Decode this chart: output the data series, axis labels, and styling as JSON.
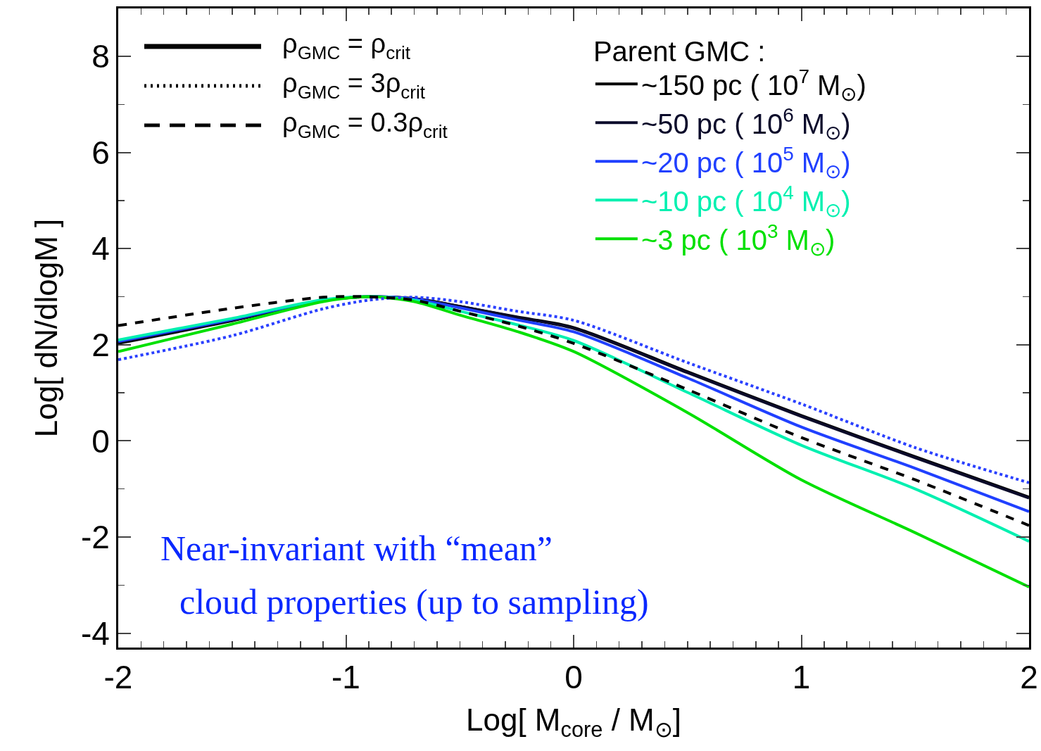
{
  "chart_data": {
    "type": "line",
    "xlabel": "Log[ M$_{core}$ / M$_{⊙}$]",
    "ylabel": "Log[ dN/dlogM ]",
    "legend_title": "Parent GMC :",
    "legend": "top right",
    "grid": false,
    "marker": "none",
    "x": [
      -2,
      -1.5,
      -1.1,
      -0.9,
      -0.7,
      -0.5,
      -0.25,
      0,
      0.5,
      1,
      1.5,
      2
    ],
    "xlim": [
      -2,
      2
    ],
    "xticks": [
      -2,
      -1,
      0,
      1,
      2
    ],
    "ylim": [
      -4.3,
      9
    ],
    "yticks": [
      -4,
      -2,
      0,
      2,
      4,
      6,
      8
    ],
    "series": [
      {
        "name": "~150 pc ( 10$^{7}$ M$_{⊙}$)",
        "color": "#000000",
        "line_style": "solid",
        "values": [
          2.03,
          2.5,
          2.92,
          3.0,
          2.96,
          2.8,
          2.58,
          2.36,
          1.44,
          0.53,
          -0.33,
          -1.17
        ]
      },
      {
        "name": "~50 pc ( 10$^{6}$ M$_{⊙}$)",
        "color": "#0a0a2a",
        "line_style": "solid",
        "values": [
          2.05,
          2.51,
          2.92,
          3.0,
          2.96,
          2.8,
          2.57,
          2.34,
          1.42,
          0.51,
          -0.35,
          -1.19
        ]
      },
      {
        "name": "~20 pc ( 10$^{5}$ M$_{⊙}$)",
        "color": "#2040ff",
        "line_style": "solid",
        "values": [
          2.07,
          2.53,
          2.93,
          3.0,
          2.95,
          2.77,
          2.52,
          2.27,
          1.31,
          0.29,
          -0.57,
          -1.47
        ]
      },
      {
        "name": "~10 pc ( 10$^{4}$ M$_{⊙}$)",
        "color": "#00f0b0",
        "line_style": "solid",
        "values": [
          2.1,
          2.55,
          2.94,
          3.0,
          2.93,
          2.7,
          2.42,
          2.09,
          1.01,
          -0.09,
          -1.0,
          -2.09
        ]
      },
      {
        "name": "~3 pc ( 10$^{3}$ M$_{⊙}$)",
        "color": "#00e000",
        "line_style": "solid",
        "values": [
          1.86,
          2.43,
          2.9,
          3.0,
          2.9,
          2.62,
          2.28,
          1.86,
          0.59,
          -0.81,
          -1.91,
          -3.04
        ]
      },
      {
        "color": "#2a40ff",
        "line_style": "dotted",
        "values": [
          1.69,
          2.19,
          2.75,
          2.93,
          2.99,
          2.9,
          2.7,
          2.51,
          1.63,
          0.77,
          -0.14,
          -0.87
        ]
      },
      {
        "color": "#000000",
        "line_style": "dashed",
        "values": [
          2.4,
          2.76,
          2.99,
          3.0,
          2.93,
          2.7,
          2.4,
          2.03,
          1.07,
          0.07,
          -0.81,
          -1.76
        ]
      }
    ],
    "annotations": [
      "ρ$_{GMC}$ = ρ$_{crit}$",
      "ρ$_{GMC}$ = 3ρ$_{crit}$",
      "ρ$_{GMC}$ = 0.3ρ$_{crit}$",
      "Near-invariant with “mean”",
      "cloud properties (up to sampling)"
    ]
  }
}
